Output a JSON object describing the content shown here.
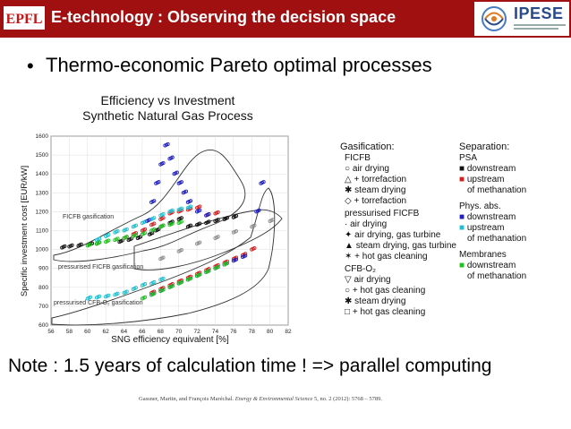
{
  "header": {
    "logo_left": "EPFL",
    "title": "E-technology : Observing the decision space",
    "logo_right": "IPESE"
  },
  "bullet": {
    "symbol": "•",
    "text": "Thermo-economic Pareto optimal processes"
  },
  "chart_data": {
    "type": "scatter",
    "title": "Efficiency vs Investment",
    "subtitle": "Synthetic Natural Gas Process",
    "xlabel": "SNG efficiency equivalent [%]",
    "ylabel": "Specific investment cost [EUR/kW]",
    "xlim": [
      56,
      82
    ],
    "ylim": [
      600,
      1600
    ],
    "xticks": [
      "56",
      "58",
      "60",
      "62",
      "64",
      "66",
      "68",
      "70",
      "72",
      "74",
      "76",
      "78",
      "80",
      "82"
    ],
    "yticks": [
      "600",
      "700",
      "800",
      "900",
      "1000",
      "1100",
      "1200",
      "1300",
      "1400",
      "1500",
      "1600"
    ],
    "region_labels": [
      "FICFB gasification",
      "pressurised FICFB gasification",
      "pressurised CFB-O₂ gasification"
    ],
    "series": [
      {
        "name": "FICFB / PSA downstream",
        "color": "#111111",
        "x": [
          57.2,
          58,
          59,
          60.2,
          61,
          63.5,
          64.5,
          65.5,
          66.8,
          67.5,
          68,
          69,
          70,
          71,
          72,
          73,
          74,
          75,
          76
        ],
        "y": [
          1010,
          1015,
          1020,
          1025,
          1030,
          1040,
          1050,
          1060,
          1080,
          1100,
          1120,
          1140,
          1160,
          1120,
          1130,
          1140,
          1150,
          1160,
          1170
        ]
      },
      {
        "name": "FICFB / PSA upstream",
        "color": "#d42020",
        "x": [
          64,
          65,
          66,
          67,
          68,
          69,
          70,
          71,
          72,
          73,
          74
        ],
        "y": [
          1060,
          1080,
          1100,
          1130,
          1160,
          1190,
          1200,
          1210,
          1220,
          1180,
          1190
        ]
      },
      {
        "name": "FICFB / Phys. abs. downstream",
        "color": "#2020c0",
        "x": [
          66.5,
          67,
          67.5,
          68,
          68.5,
          69,
          69.5,
          70,
          70.5,
          71,
          72,
          73
        ],
        "y": [
          1150,
          1250,
          1350,
          1450,
          1550,
          1480,
          1400,
          1350,
          1300,
          1250,
          1200,
          1180
        ]
      },
      {
        "name": "FICFB / Phys. abs. upstream",
        "color": "#20c0d0",
        "x": [
          61,
          62,
          63,
          64,
          65,
          66,
          67,
          68,
          69,
          70,
          71
        ],
        "y": [
          1050,
          1070,
          1090,
          1100,
          1120,
          1140,
          1160,
          1180,
          1200,
          1210,
          1220
        ]
      },
      {
        "name": "FICFB / Membranes downstream",
        "color": "#20c020",
        "x": [
          60,
          61,
          62,
          63,
          64,
          65,
          66,
          67,
          68,
          69,
          70
        ],
        "y": [
          1020,
          1030,
          1040,
          1050,
          1060,
          1070,
          1080,
          1100,
          1120,
          1130,
          1140
        ]
      },
      {
        "name": "pressurised FICFB",
        "color": "#909090",
        "x": [
          68,
          70,
          72,
          74,
          76,
          78,
          80
        ],
        "y": [
          950,
          990,
          1030,
          1060,
          1090,
          1120,
          1150
        ]
      },
      {
        "name": "CFB-O2 / PSA upstream",
        "color": "#d42020",
        "x": [
          67,
          68,
          69,
          70,
          71,
          72,
          73,
          74,
          75,
          76,
          77,
          78
        ],
        "y": [
          770,
          790,
          810,
          830,
          850,
          870,
          890,
          910,
          930,
          950,
          970,
          1000
        ]
      },
      {
        "name": "CFB-O2 / Phys. abs. downstream",
        "color": "#2020c0",
        "x": [
          67,
          68,
          69,
          70,
          71,
          72,
          73,
          74,
          75,
          76,
          77,
          78.5,
          79
        ],
        "y": [
          760,
          780,
          800,
          820,
          840,
          860,
          880,
          900,
          920,
          940,
          960,
          1200,
          1350
        ]
      },
      {
        "name": "CFB-O2 / Phys. abs. upstream",
        "color": "#20c0d0",
        "x": [
          60,
          61,
          62,
          63,
          64,
          65,
          66,
          67,
          68
        ],
        "y": [
          740,
          745,
          750,
          760,
          770,
          790,
          810,
          820,
          840
        ]
      },
      {
        "name": "CFB-O2 / Membranes downstream",
        "color": "#20c020",
        "x": [
          66,
          67,
          68,
          69,
          70,
          71,
          72,
          73,
          74,
          75
        ],
        "y": [
          740,
          760,
          780,
          800,
          820,
          840,
          860,
          880,
          900,
          920
        ]
      }
    ]
  },
  "legend": {
    "gasification_header": "Gasification:",
    "ficfb_header": "FICFB",
    "ficfb_items": [
      "air drying",
      "+ torrefaction",
      "steam drying",
      "+ torrefaction"
    ],
    "pficfb_header": "pressurised FICFB",
    "pficfb_items": [
      "air drying",
      "air drying, gas turbine",
      "steam drying, gas turbine",
      "+ hot gas cleaning"
    ],
    "cfbo2_header": "CFB-O₂",
    "cfbo2_items": [
      "air drying",
      "+ hot gas cleaning",
      "steam drying",
      "+ hot gas cleaning"
    ],
    "separation_header": "Separation:",
    "psa_header": "PSA",
    "psa_items": [
      "downstream",
      "upstream",
      "of methanation"
    ],
    "physabs_header": "Phys. abs.",
    "physabs_items": [
      "downstream",
      "upstream",
      "of methanation"
    ],
    "membranes_header": "Membranes",
    "membranes_items": [
      "downstream",
      "of methanation"
    ],
    "colors": {
      "psa_down": "#111111",
      "psa_up": "#d42020",
      "phys_down": "#2020c0",
      "phys_up": "#20c0d0",
      "membranes": "#20c020"
    }
  },
  "note": "Note : 1.5 years of calculation time ! => parallel computing",
  "reference": {
    "authors": "Gassner, Martin, and François Maréchal.",
    "journal": "Energy & Environmental Science",
    "details": "5, no. 2 (2012): 5768 – 5789."
  }
}
